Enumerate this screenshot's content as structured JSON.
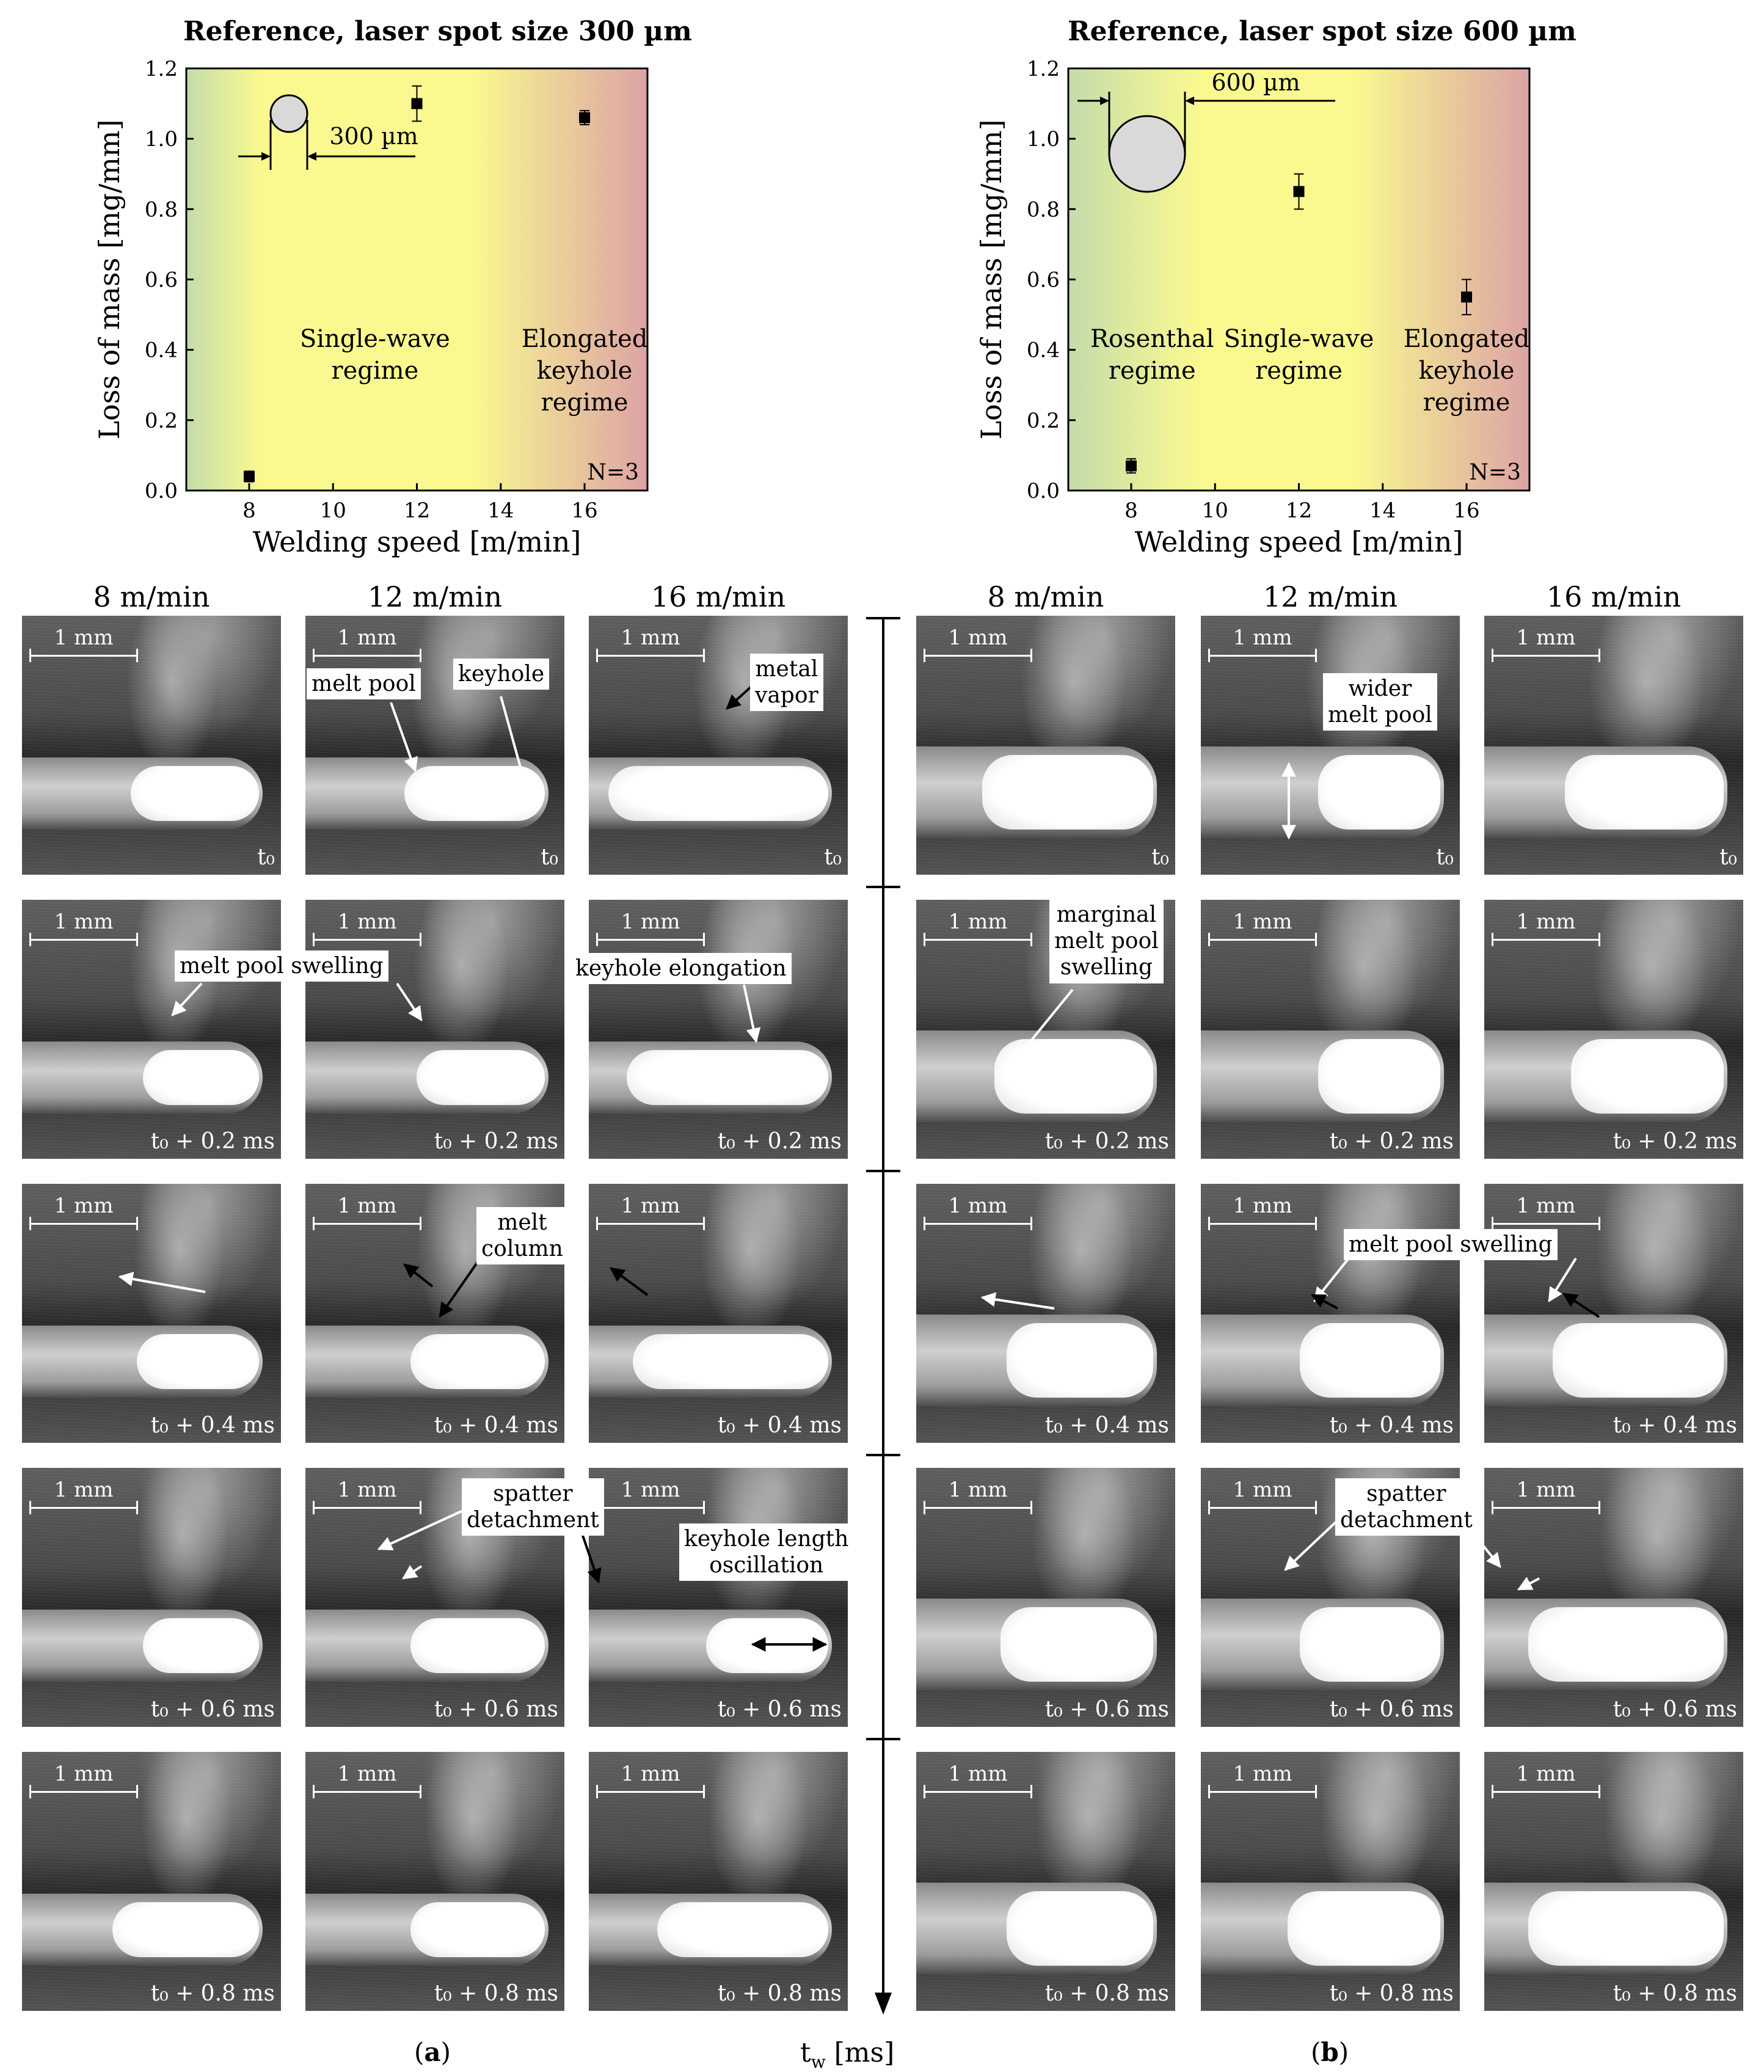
{
  "charts": [
    {
      "title": "Reference, laser spot size 300 µm",
      "spot_label": "300 µm",
      "regimes": [
        "Single-wave\nregime",
        "Elongated\nkeyhole\nregime"
      ],
      "n_label": "N=3"
    },
    {
      "title": "Reference, laser spot size 600 µm",
      "spot_label": "600 µm",
      "regimes": [
        "Rosenthal\nregime",
        "Single-wave\nregime",
        "Elongated\nkeyhole\nregime"
      ],
      "n_label": "N=3"
    }
  ],
  "chart_data": [
    {
      "type": "scatter",
      "title": "Reference, laser spot size 300 µm",
      "xlabel": "Welding speed [m/min]",
      "ylabel": "Loss of mass [mg/mm]",
      "xlim": [
        6.5,
        17.5
      ],
      "ylim": [
        0.0,
        1.2
      ],
      "xticks": [
        8,
        10,
        12,
        14,
        16
      ],
      "yticks": [
        0.0,
        0.2,
        0.4,
        0.6,
        0.8,
        1.0,
        1.2
      ],
      "x": [
        8,
        12,
        16
      ],
      "y": [
        0.04,
        1.1,
        1.06
      ],
      "yerr": [
        0.015,
        0.05,
        0.02
      ],
      "background": "gradient green-yellow-red",
      "colors": {
        "green": "#c4dcab",
        "yellow": "#f9f990",
        "red": "#dca3a5"
      }
    },
    {
      "type": "scatter",
      "title": "Reference, laser spot size 600 µm",
      "xlabel": "Welding speed [m/min]",
      "ylabel": "Loss of mass [mg/mm]",
      "xlim": [
        6.5,
        17.5
      ],
      "ylim": [
        0.0,
        1.2
      ],
      "xticks": [
        8,
        10,
        12,
        14,
        16
      ],
      "yticks": [
        0.0,
        0.2,
        0.4,
        0.6,
        0.8,
        1.0,
        1.2
      ],
      "x": [
        8,
        12,
        16
      ],
      "y": [
        0.07,
        0.85,
        0.55
      ],
      "yerr": [
        0.02,
        0.05,
        0.05
      ],
      "background": "gradient green-yellow-red",
      "colors": {
        "green": "#c4dcab",
        "yellow": "#f9f990",
        "red": "#dca3a5"
      }
    }
  ],
  "speeds": [
    "8 m/min",
    "12 m/min",
    "16 m/min"
  ],
  "scale_bar": "1 mm",
  "time_labels": [
    "t₀",
    "t₀ + 0.2 ms",
    "t₀ + 0.4 ms",
    "t₀ + 0.6 ms",
    "t₀ + 0.8 ms"
  ],
  "annotations": {
    "melt_pool": "melt pool",
    "keyhole": "keyhole",
    "metal_vapor": "metal\nvapor",
    "wider_melt_pool": "wider\nmelt pool",
    "melt_pool_swelling": "melt pool swelling",
    "keyhole_elongation": "keyhole elongation",
    "marginal_swelling": "marginal\nmelt pool\nswelling",
    "melt_column": "melt\ncolumn",
    "spatter_detachment": "spatter\ndetachment",
    "keyhole_length_oscillation": "keyhole length\noscillation"
  },
  "time_axis": {
    "label_t": "t",
    "label_sub": "w",
    "label_unit": " [ms]"
  },
  "panel_labels": [
    "(a)",
    "(b)"
  ]
}
